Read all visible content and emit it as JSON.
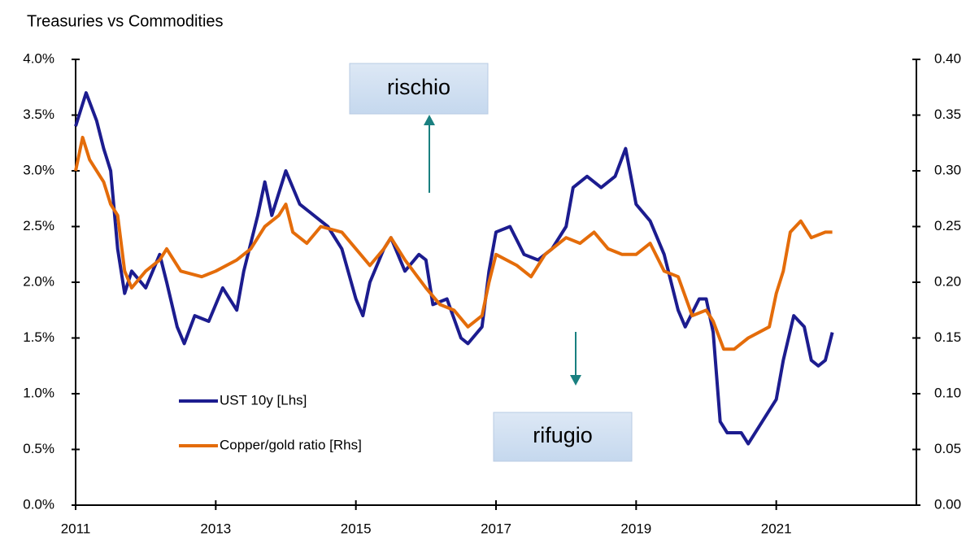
{
  "chart_data": {
    "type": "line",
    "title": "Treasuries vs Commodities",
    "annotations": [
      "rischio",
      "rifugio"
    ],
    "legend": "lower left",
    "xlim": [
      2011,
      2023
    ],
    "xticks": [
      2011,
      2013,
      2015,
      2017,
      2019,
      2021
    ],
    "ylim": [
      0,
      4
    ],
    "yticks": [
      {
        "value": 0,
        "label": "0.0%"
      },
      {
        "value": 0.5,
        "label": "0.5%"
      },
      {
        "value": 1,
        "label": "1.0%"
      },
      {
        "value": 1.5,
        "label": "1.5%"
      },
      {
        "value": 2,
        "label": "2.0%"
      },
      {
        "value": 2.5,
        "label": "2.5%"
      },
      {
        "value": 3,
        "label": "3.0%"
      },
      {
        "value": 3.5,
        "label": "3.5%"
      },
      {
        "value": 4,
        "label": "4.0%"
      }
    ],
    "y2lim": [
      0,
      0.4
    ],
    "y2ticks": [
      {
        "value": 0,
        "label": "0.00"
      },
      {
        "value": 0.05,
        "label": "0.05"
      },
      {
        "value": 0.1,
        "label": "0.10"
      },
      {
        "value": 0.15,
        "label": "0.15"
      },
      {
        "value": 0.2,
        "label": "0.20"
      },
      {
        "value": 0.25,
        "label": "0.25"
      },
      {
        "value": 0.3,
        "label": "0.30"
      },
      {
        "value": 0.35,
        "label": "0.35"
      },
      {
        "value": 0.4,
        "label": "0.40"
      }
    ],
    "series": [
      {
        "name": "UST 10y [Lhs]",
        "color": "#1c1c8f",
        "axis": "y",
        "x": [
          2011.0,
          2011.1,
          2011.15,
          2011.3,
          2011.4,
          2011.5,
          2011.6,
          2011.7,
          2011.8,
          2012.0,
          2012.2,
          2012.3,
          2012.45,
          2012.55,
          2012.7,
          2012.9,
          2013.1,
          2013.3,
          2013.4,
          2013.6,
          2013.7,
          2013.8,
          2014.0,
          2014.2,
          2014.4,
          2014.6,
          2014.8,
          2015.0,
          2015.1,
          2015.2,
          2015.4,
          2015.5,
          2015.7,
          2015.9,
          2016.0,
          2016.1,
          2016.3,
          2016.5,
          2016.6,
          2016.8,
          2016.9,
          2017.0,
          2017.2,
          2017.4,
          2017.6,
          2017.8,
          2018.0,
          2018.1,
          2018.3,
          2018.5,
          2018.7,
          2018.85,
          2019.0,
          2019.2,
          2019.4,
          2019.6,
          2019.7,
          2019.9,
          2020.0,
          2020.1,
          2020.2,
          2020.3,
          2020.5,
          2020.6,
          2020.8,
          2021.0,
          2021.1,
          2021.25,
          2021.4,
          2021.5,
          2021.6,
          2021.7,
          2021.8
        ],
        "values": [
          3.4,
          3.6,
          3.7,
          3.45,
          3.2,
          3.0,
          2.3,
          1.9,
          2.1,
          1.95,
          2.25,
          2.0,
          1.6,
          1.45,
          1.7,
          1.65,
          1.95,
          1.75,
          2.1,
          2.6,
          2.9,
          2.6,
          3.0,
          2.7,
          2.6,
          2.5,
          2.3,
          1.85,
          1.7,
          2.0,
          2.3,
          2.4,
          2.1,
          2.25,
          2.2,
          1.8,
          1.85,
          1.5,
          1.45,
          1.6,
          2.1,
          2.45,
          2.5,
          2.25,
          2.2,
          2.3,
          2.5,
          2.85,
          2.95,
          2.85,
          2.95,
          3.2,
          2.7,
          2.55,
          2.25,
          1.75,
          1.6,
          1.85,
          1.85,
          1.55,
          0.75,
          0.65,
          0.65,
          0.55,
          0.75,
          0.95,
          1.3,
          1.7,
          1.6,
          1.3,
          1.25,
          1.3,
          1.55
        ]
      },
      {
        "name": "Copper/gold ratio [Rhs]",
        "color": "#e46c0a",
        "axis": "y2",
        "x": [
          2011.0,
          2011.1,
          2011.2,
          2011.4,
          2011.5,
          2011.6,
          2011.7,
          2011.8,
          2012.0,
          2012.2,
          2012.3,
          2012.5,
          2012.8,
          2013.0,
          2013.3,
          2013.5,
          2013.7,
          2013.9,
          2014.0,
          2014.1,
          2014.3,
          2014.5,
          2014.8,
          2015.0,
          2015.2,
          2015.4,
          2015.5,
          2015.7,
          2016.0,
          2016.2,
          2016.4,
          2016.6,
          2016.8,
          2016.9,
          2017.0,
          2017.3,
          2017.5,
          2017.7,
          2017.9,
          2018.0,
          2018.2,
          2018.4,
          2018.6,
          2018.8,
          2019.0,
          2019.2,
          2019.4,
          2019.6,
          2019.8,
          2020.0,
          2020.1,
          2020.25,
          2020.4,
          2020.6,
          2020.9,
          2021.0,
          2021.1,
          2021.2,
          2021.35,
          2021.5,
          2021.7,
          2021.8
        ],
        "values": [
          0.3,
          0.33,
          0.31,
          0.29,
          0.27,
          0.26,
          0.21,
          0.195,
          0.21,
          0.22,
          0.23,
          0.21,
          0.205,
          0.21,
          0.22,
          0.23,
          0.25,
          0.26,
          0.27,
          0.245,
          0.235,
          0.25,
          0.245,
          0.23,
          0.215,
          0.23,
          0.24,
          0.22,
          0.195,
          0.18,
          0.175,
          0.16,
          0.17,
          0.2,
          0.225,
          0.215,
          0.205,
          0.225,
          0.235,
          0.24,
          0.235,
          0.245,
          0.23,
          0.225,
          0.225,
          0.235,
          0.21,
          0.205,
          0.17,
          0.175,
          0.165,
          0.14,
          0.14,
          0.15,
          0.16,
          0.19,
          0.21,
          0.245,
          0.255,
          0.24,
          0.245,
          0.245
        ]
      }
    ]
  }
}
